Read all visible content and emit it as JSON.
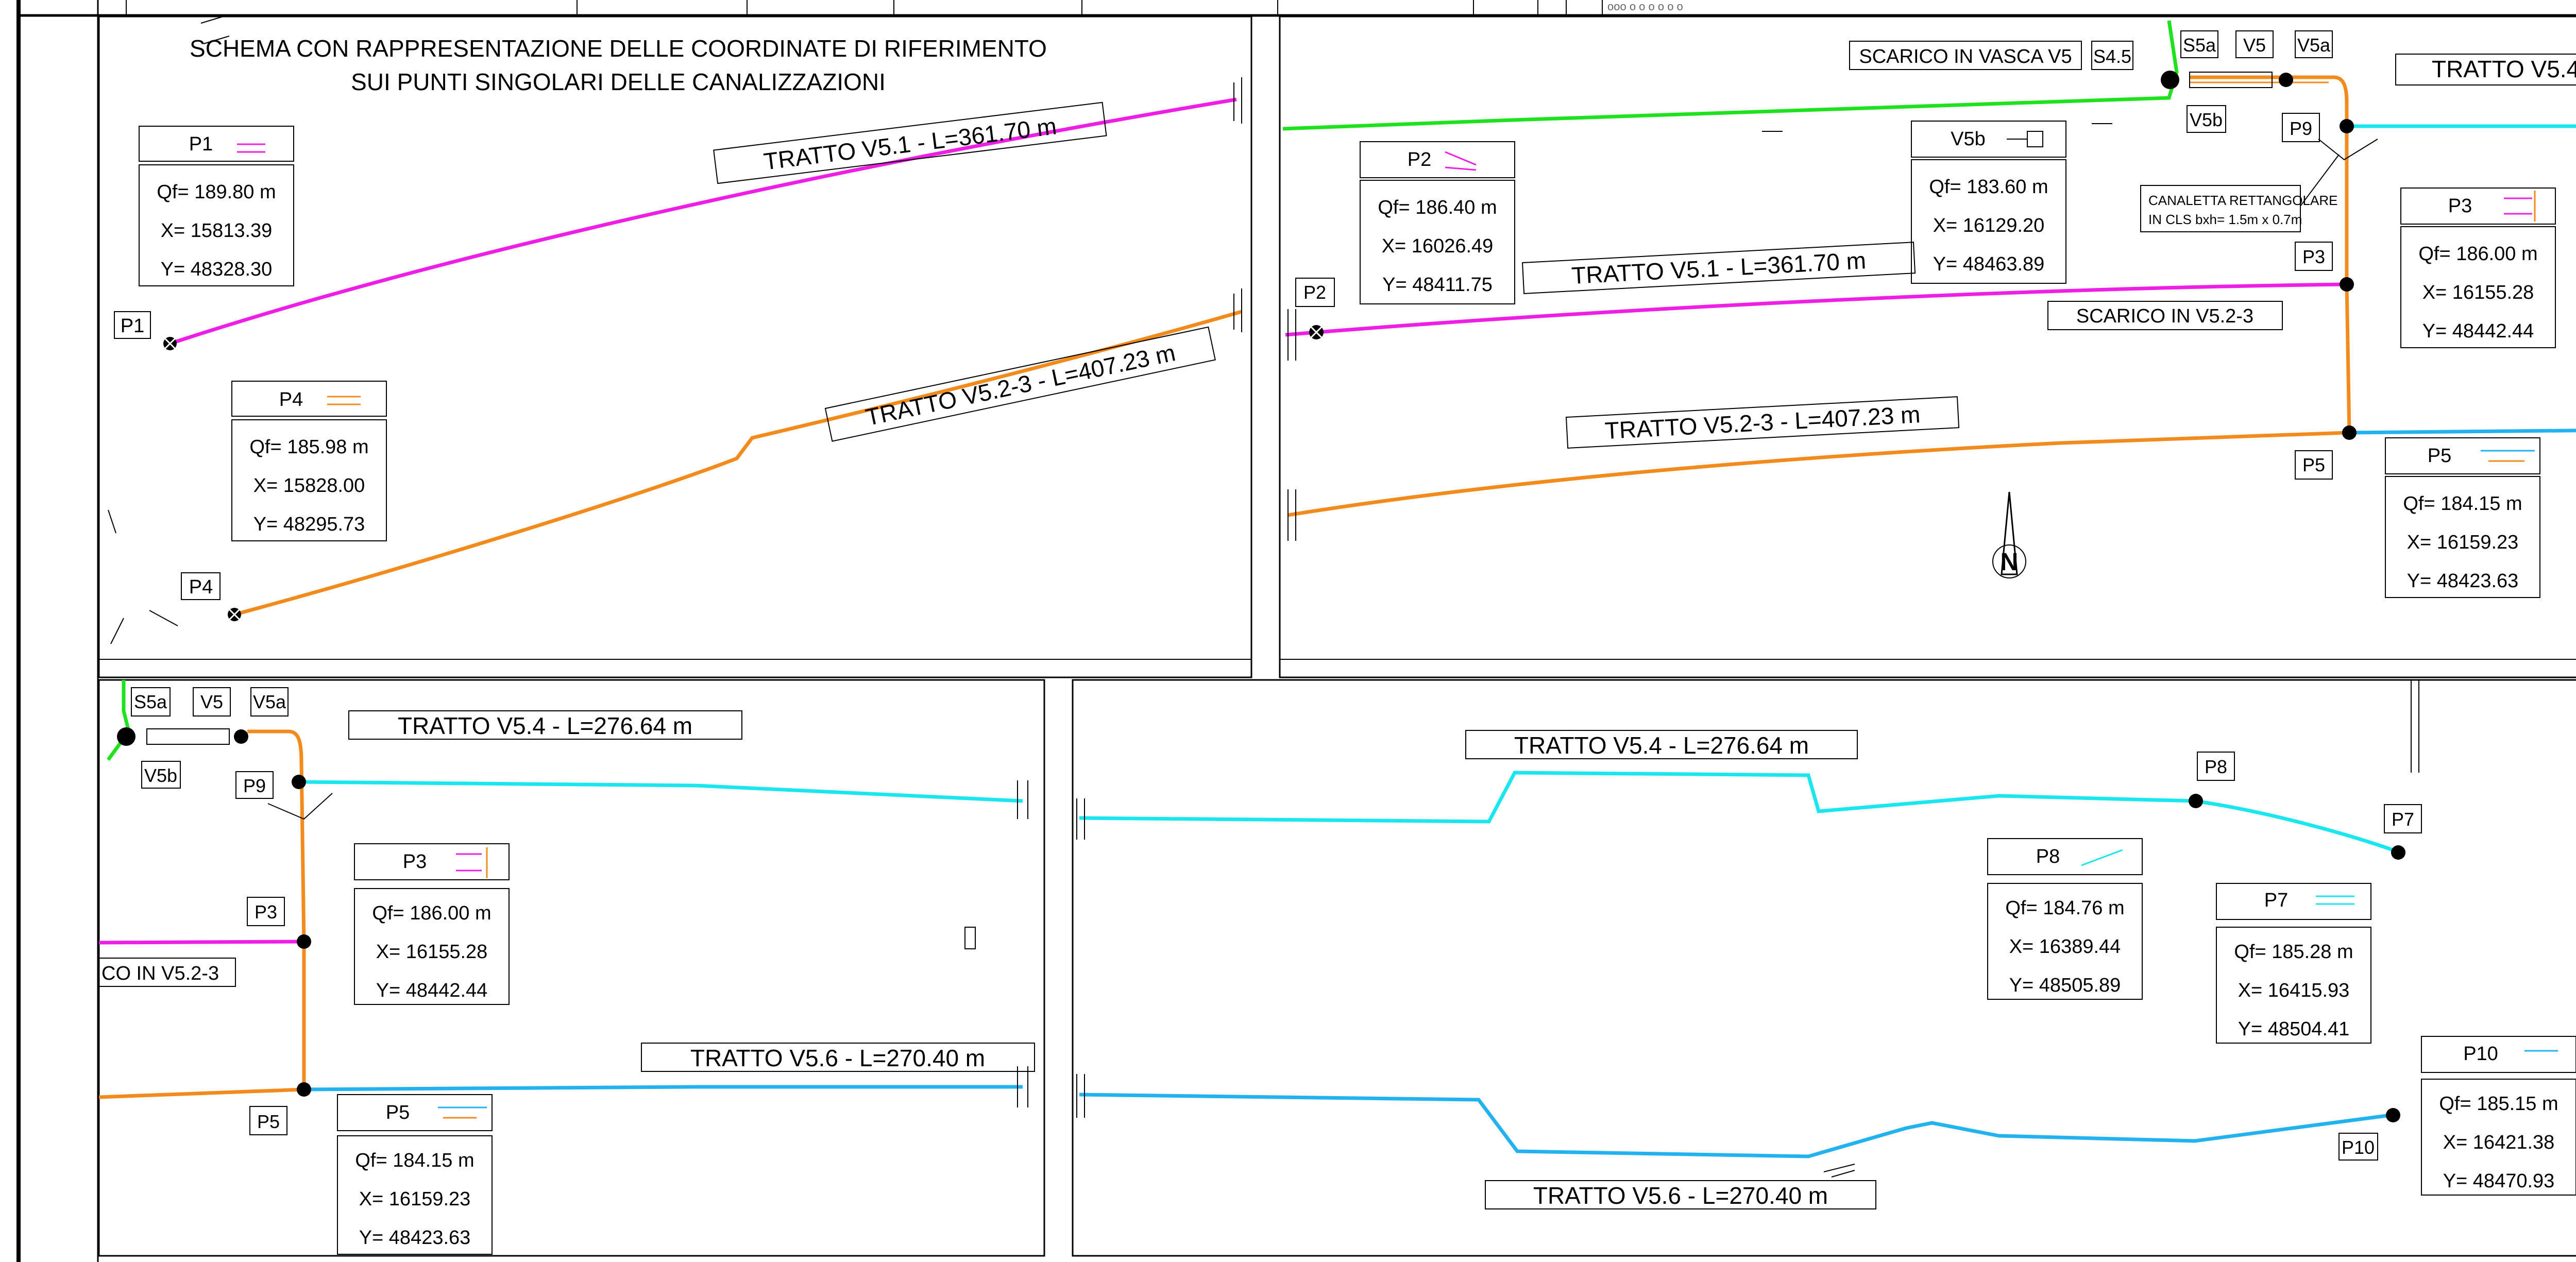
{
  "title_line1": "SCHEMA CON RAPPRESENTAZIONE DELLE COORDINATE DI RIFERIMENTO",
  "title_line2": "SUI PUNTI SINGOLARI DELLE CANALIZZAZIONI",
  "colors": {
    "v51": "#ee1ee6",
    "v523": "#f28a1c",
    "v54": "#19e6ef",
    "v56": "#22b2ef",
    "green": "#1de21d"
  },
  "tratti": {
    "v51": "TRATTO V5.1 - L=361.70 m",
    "v523": "TRATTO V5.2-3 - L=407.23 m",
    "v54": "TRATTO V5.4 - L=276.64 m",
    "v54_cut": "TRATTO V5.4 - L",
    "v56": "TRATTO V5.6 - L=270.40 m"
  },
  "labels": {
    "scarico_vasca": "SCARICO IN VASCA V5",
    "s45": "S4.5",
    "s5a": "S5a",
    "v5": "V5",
    "v5a": "V5a",
    "v5b": "V5b",
    "scarico_v523": "SCARICO IN V5.2-3",
    "scarico_v523_cut": "CO IN V5.2-3",
    "canaletta1": "CANALETTA RETTANGOLARE",
    "canaletta2": "IN CLS bxh= 1.5m x 0.7m",
    "north": "N"
  },
  "points": {
    "P1": {
      "name": "P1",
      "qf": "Qf= 189.80 m",
      "x": "X= 15813.39",
      "y": "Y= 48328.30"
    },
    "P2": {
      "name": "P2",
      "qf": "Qf= 186.40 m",
      "x": "X= 16026.49",
      "y": "Y= 48411.75"
    },
    "P3": {
      "name": "P3",
      "qf": "Qf= 186.00 m",
      "x": "X= 16155.28",
      "y": "Y= 48442.44"
    },
    "P4": {
      "name": "P4",
      "qf": "Qf= 185.98 m",
      "x": "X= 15828.00",
      "y": "Y= 48295.73"
    },
    "P5": {
      "name": "P5",
      "qf": "Qf= 184.15 m",
      "x": "X= 16159.23",
      "y": "Y= 48423.63"
    },
    "P7": {
      "name": "P7",
      "qf": "Qf= 185.28 m",
      "x": "X= 16415.93",
      "y": "Y= 48504.41"
    },
    "P8": {
      "name": "P8",
      "qf": "Qf= 184.76 m",
      "x": "X= 16389.44",
      "y": "Y= 48505.89"
    },
    "P9": {
      "name": "P9"
    },
    "P10": {
      "name": "P10",
      "qf": "Qf= 185.15 m",
      "x": "X= 16421.38",
      "y": "Y= 48470.93"
    },
    "V5b": {
      "name": "V5b",
      "qf": "Qf= 183.60 m",
      "x": "X= 16129.20",
      "y": "Y= 48463.89"
    }
  }
}
